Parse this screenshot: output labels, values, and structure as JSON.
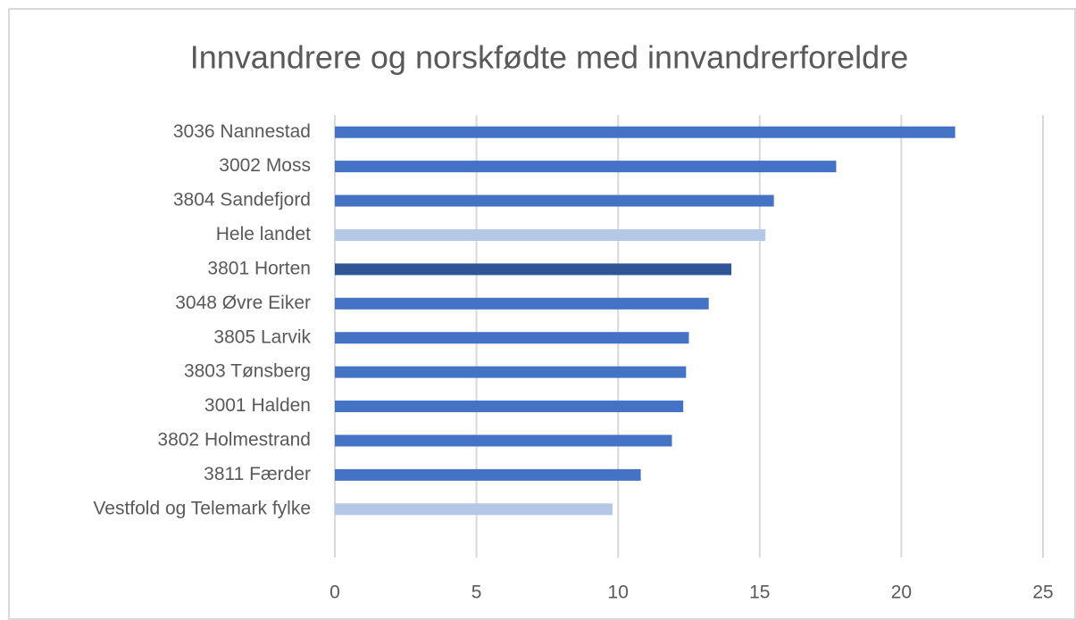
{
  "chart_data": {
    "type": "bar",
    "orientation": "horizontal",
    "title": "Innvandrere og norskfødte med innvandrerforeldre",
    "categories": [
      "3036 Nannestad",
      "3002 Moss",
      "3804 Sandefjord",
      "Hele landet",
      "3801 Horten",
      "3048 Øvre Eiker",
      "3805 Larvik",
      "3803 Tønsberg",
      "3001 Halden",
      "3802 Holmestrand",
      "3811 Færder",
      "Vestfold og Telemark fylke"
    ],
    "values": [
      21.9,
      17.7,
      15.5,
      15.2,
      14.0,
      13.2,
      12.5,
      12.4,
      12.3,
      11.9,
      10.8,
      9.8
    ],
    "colors": [
      "#4472c4",
      "#4472c4",
      "#4472c4",
      "#b4c7e7",
      "#2f5597",
      "#4472c4",
      "#4472c4",
      "#4472c4",
      "#4472c4",
      "#4472c4",
      "#4472c4",
      "#b4c7e7"
    ],
    "xlim": [
      0,
      25
    ],
    "xticks": [
      0,
      5,
      10,
      15,
      20,
      25
    ],
    "grid": true
  }
}
